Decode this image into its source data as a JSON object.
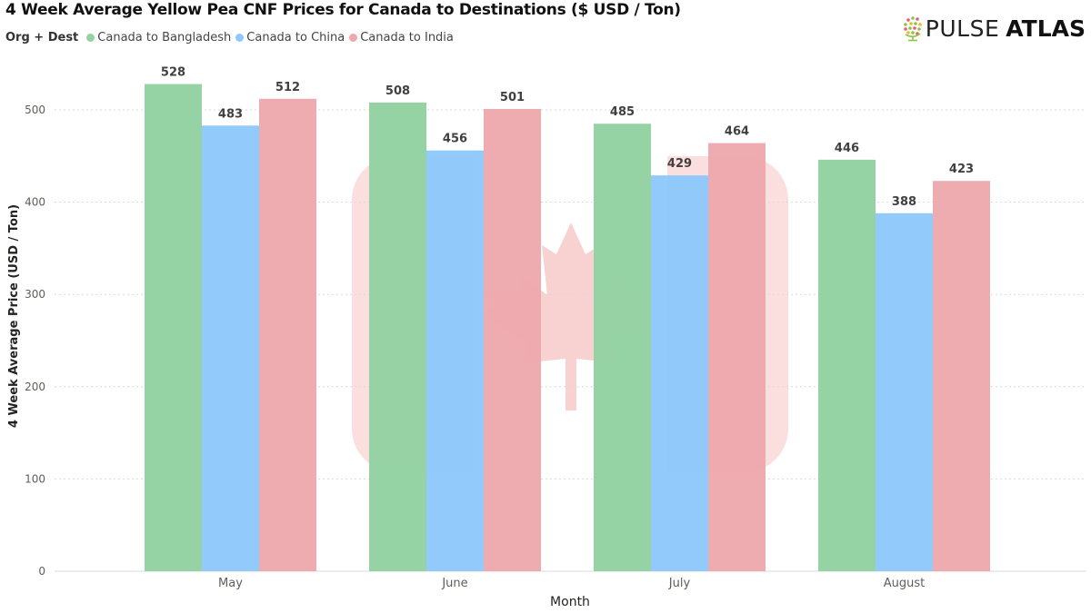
{
  "brand": {
    "light": "PULSE",
    "bold": "ATLAS",
    "logo_icon": "globe-dots-icon"
  },
  "legend": {
    "title": "Org + Dest"
  },
  "chart_data": {
    "type": "bar",
    "title": "4 Week Average Yellow Pea CNF Prices for Canada to Destinations ($ USD / Ton)",
    "xlabel": "Month",
    "ylabel": "4 Week Average Price (USD / Ton)",
    "categories": [
      "May",
      "June",
      "July",
      "August"
    ],
    "series": [
      {
        "name": "Canada to Bangladesh",
        "color": "#93d2a1",
        "values": [
          528,
          508,
          485,
          446
        ]
      },
      {
        "name": "Canada to China",
        "color": "#8ec8fc",
        "values": [
          483,
          456,
          429,
          388
        ]
      },
      {
        "name": "Canada to India",
        "color": "#eda8ad",
        "values": [
          512,
          501,
          464,
          423
        ]
      }
    ],
    "ylim": [
      0,
      545
    ],
    "yticks": [
      0,
      100,
      200,
      300,
      400,
      500
    ],
    "grid": true,
    "legend_position": "top-left",
    "watermark_icon": "canada-flag-icon"
  }
}
